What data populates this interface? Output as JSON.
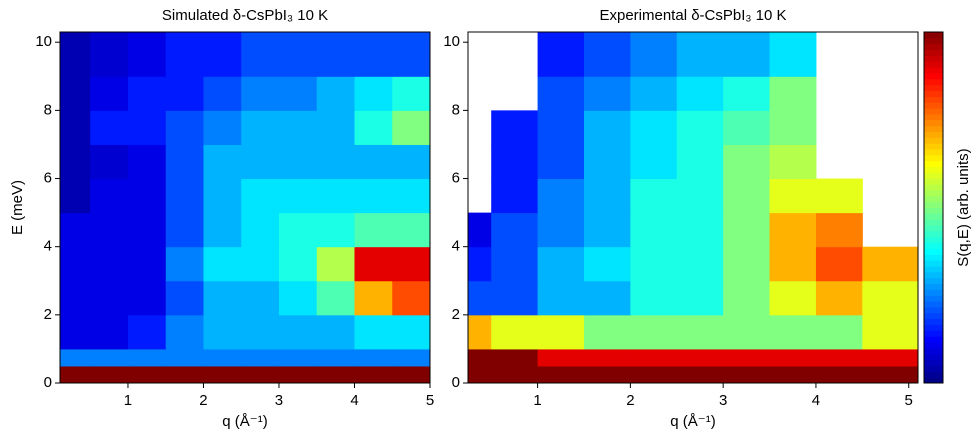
{
  "chart_data": [
    {
      "type": "heatmap",
      "title": "Simulated δ-CsPbI₃ 10 K",
      "xlabel": "q (Å⁻¹)",
      "ylabel": "E (meV)",
      "xlim": [
        0.1,
        5
      ],
      "ylim": [
        0,
        10.3
      ],
      "xticks": [
        1,
        2,
        3,
        4,
        5
      ],
      "yticks": [
        0,
        2,
        4,
        6,
        8,
        10
      ],
      "x_edges": [
        0.1,
        0.5,
        1,
        1.5,
        2,
        2.5,
        3,
        3.5,
        4,
        4.5,
        5
      ],
      "y_edges": [
        0,
        0.5,
        1,
        2,
        3,
        4,
        5,
        6,
        7,
        8,
        9,
        10.3
      ],
      "zlim": [
        0,
        10
      ],
      "z": [
        [
          10,
          10,
          10,
          10,
          10,
          10,
          10,
          10,
          10,
          10
        ],
        [
          2.5,
          2.5,
          2.5,
          2.5,
          2.5,
          2.5,
          2.5,
          2.5,
          2.5,
          2.5
        ],
        [
          1,
          1,
          1.5,
          2.5,
          3,
          3,
          3,
          3,
          3.5,
          3.5
        ],
        [
          1,
          1,
          1,
          2,
          3,
          3,
          3.5,
          4.5,
          7,
          8
        ],
        [
          1,
          1,
          1,
          2.5,
          3.5,
          3.5,
          4,
          5.5,
          9,
          9
        ],
        [
          1,
          1,
          1,
          2,
          3,
          3.5,
          4,
          4,
          4.5,
          4.5
        ],
        [
          0.5,
          1,
          1,
          2,
          3,
          3.5,
          3.5,
          3.5,
          3.5,
          3.5
        ],
        [
          0.5,
          0.8,
          1,
          2,
          3,
          3,
          3,
          3,
          3,
          3
        ],
        [
          0.5,
          1.5,
          1.5,
          2,
          2.5,
          3,
          3,
          3,
          4,
          5
        ],
        [
          0.5,
          1,
          1.5,
          1.5,
          2,
          2.5,
          2.5,
          3,
          3.5,
          4
        ],
        [
          0.5,
          0.8,
          1,
          1.5,
          1.5,
          2,
          2,
          2,
          2,
          2
        ]
      ]
    },
    {
      "type": "heatmap",
      "title": "Experimental δ-CsPbI₃ 10 K",
      "xlabel": "q (Å⁻¹)",
      "colorbar_label": "S(q,E) (arb. units)",
      "xlim": [
        0.25,
        5.1
      ],
      "ylim": [
        0,
        10.3
      ],
      "xticks": [
        1,
        2,
        3,
        4,
        5
      ],
      "yticks": [
        0,
        2,
        4,
        6,
        8,
        10
      ],
      "x_edges": [
        0.25,
        0.5,
        1,
        1.5,
        2,
        2.5,
        3,
        3.5,
        4,
        4.5,
        5.1
      ],
      "y_edges": [
        0,
        0.5,
        1,
        2,
        3,
        4,
        5,
        6,
        7,
        8,
        9,
        10.3
      ],
      "zlim": [
        0,
        10
      ],
      "z": [
        [
          10,
          10,
          10,
          10,
          10,
          10,
          10,
          10,
          10,
          10
        ],
        [
          10,
          10,
          9,
          9,
          9,
          9,
          9,
          9,
          9,
          9
        ],
        [
          7,
          6,
          6,
          5,
          5,
          5,
          5,
          5,
          5,
          6
        ],
        [
          2,
          2,
          3,
          3,
          4,
          4,
          5,
          6,
          7,
          6
        ],
        [
          1.5,
          2,
          3,
          3.5,
          4,
          4,
          5,
          7,
          8,
          7
        ],
        [
          1,
          2,
          2.5,
          3,
          4,
          4,
          5,
          7,
          7.5,
          null
        ],
        [
          null,
          1.5,
          2.5,
          3,
          4,
          4,
          5,
          6,
          6,
          null
        ],
        [
          null,
          1.5,
          2,
          3,
          3.5,
          4,
          5,
          5.5,
          null,
          null
        ],
        [
          null,
          1.5,
          2,
          3,
          3.5,
          4,
          4.5,
          5,
          null,
          null
        ],
        [
          null,
          null,
          2,
          2.5,
          3,
          3.5,
          4,
          5,
          null,
          null
        ],
        [
          null,
          null,
          1.5,
          2,
          2.5,
          3,
          3,
          3.5,
          null,
          null
        ]
      ]
    }
  ]
}
